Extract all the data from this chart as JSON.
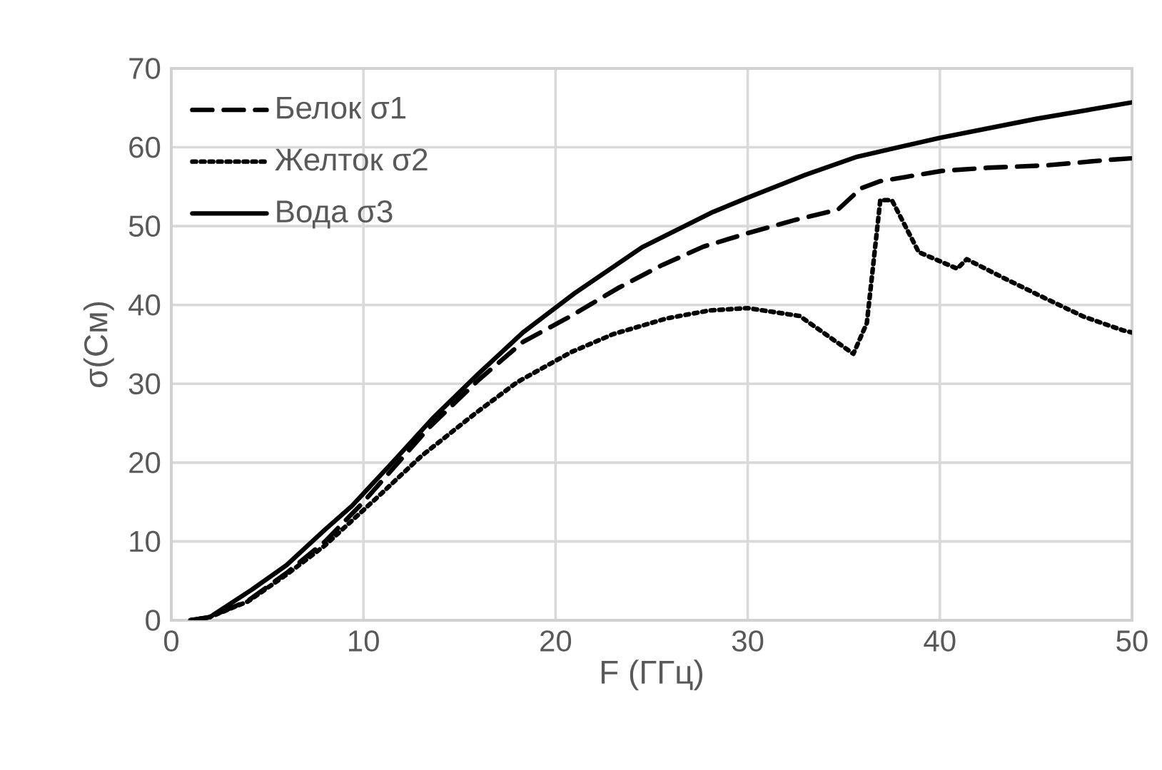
{
  "chart_data": {
    "type": "line",
    "xlabel": "F (ГГц)",
    "ylabel": "σ(См)",
    "xlim": [
      0,
      50
    ],
    "ylim": [
      0,
      70
    ],
    "xticks": [
      0,
      10,
      20,
      30,
      40,
      50
    ],
    "yticks": [
      0,
      10,
      20,
      30,
      40,
      50,
      60,
      70
    ],
    "grid": true,
    "legend": "top left",
    "series": [
      {
        "name": "Белок σ1",
        "color": "#000000",
        "line_style": "dashed",
        "x": [
          1,
          2,
          4,
          6,
          8,
          10,
          13.4,
          16,
          18.3,
          20.8,
          23.3,
          25.5,
          27.7,
          30,
          32.5,
          34.7,
          35.9,
          36.9,
          40.1,
          42.5,
          45.5,
          48.8,
          50
        ],
        "values": [
          0,
          0.4,
          2.5,
          6,
          10,
          15,
          24.4,
          30.5,
          35.3,
          38.6,
          42.2,
          45,
          47.4,
          49.1,
          50.8,
          52.1,
          54.8,
          55.7,
          57,
          57.4,
          57.7,
          58.4,
          58.6
        ]
      },
      {
        "name": "Желток σ2",
        "color": "#000000",
        "line_style": "dotted",
        "x": [
          1,
          2,
          4,
          6,
          8,
          10.9,
          13,
          15.8,
          18,
          20.8,
          23,
          25.8,
          28,
          30,
          32.7,
          35.5,
          36.2,
          36.9,
          37.5,
          38.9,
          40.9,
          41.4,
          43.5,
          45.6,
          47.5,
          49.5,
          50
        ],
        "values": [
          0,
          0.4,
          2.4,
          5.8,
          9.5,
          16,
          20.8,
          26.2,
          30.2,
          34,
          36.3,
          38.3,
          39.3,
          39.6,
          38.6,
          33.8,
          37.7,
          53.3,
          53.3,
          46.7,
          44.6,
          45.8,
          43.2,
          40.7,
          38.5,
          36.8,
          36.5
        ]
      },
      {
        "name": "Вода σ3",
        "color": "#000000",
        "line_style": "solid",
        "x": [
          1,
          2,
          4.2,
          6,
          8,
          9.4,
          11.5,
          13.6,
          16,
          18.3,
          21,
          24.5,
          28.2,
          30,
          33,
          35.7,
          40,
          45,
          50
        ],
        "values": [
          0,
          0.4,
          3.9,
          7,
          11.5,
          14.5,
          20,
          25.6,
          31.3,
          36.5,
          41.5,
          47.3,
          51.8,
          53.6,
          56.5,
          58.8,
          61.2,
          63.6,
          65.7
        ]
      }
    ]
  }
}
